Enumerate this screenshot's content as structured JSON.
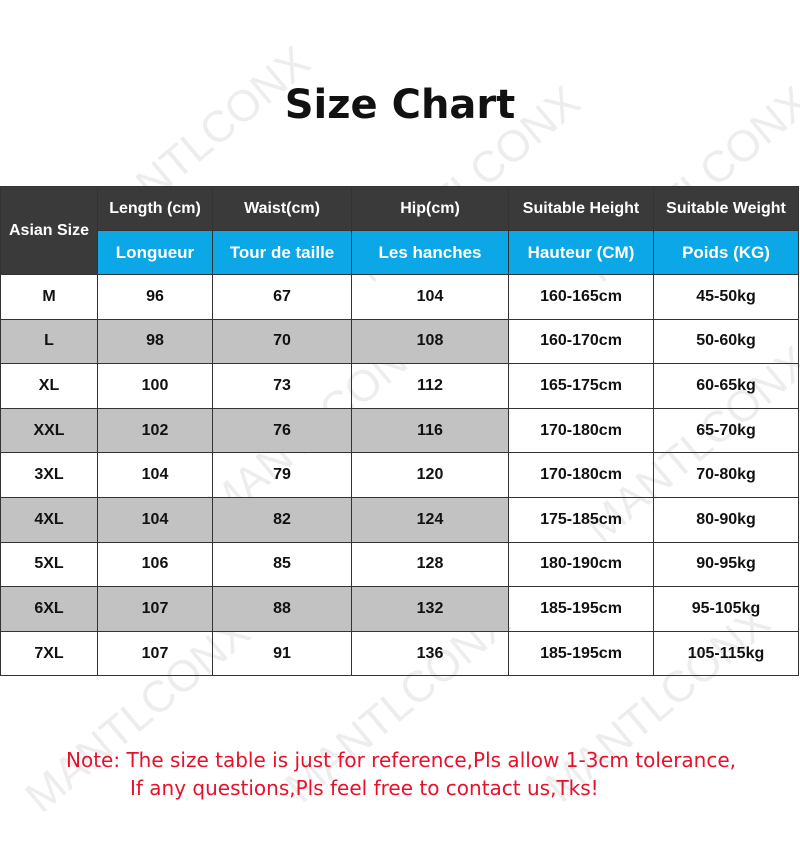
{
  "title": "Size Chart",
  "watermark": "MANTLCONX",
  "colors": {
    "header_dark": "#3a3a3a",
    "header_blue": "#0ba7e6",
    "row_gray": "#c2c2c2",
    "note_red": "#e8102a"
  },
  "table": {
    "corner_header": "Asian Size",
    "headers_en": [
      "Length (cm)",
      "Waist(cm)",
      "Hip(cm)",
      "Suitable Height",
      "Suitable Weight"
    ],
    "headers_fr": [
      "Longueur",
      "Tour de taille",
      "Les hanches",
      "Hauteur (CM)",
      "Poids (KG)"
    ],
    "rows": [
      [
        "M",
        "96",
        "67",
        "104",
        "160-165cm",
        "45-50kg"
      ],
      [
        "L",
        "98",
        "70",
        "108",
        "160-170cm",
        "50-60kg"
      ],
      [
        "XL",
        "100",
        "73",
        "112",
        "165-175cm",
        "60-65kg"
      ],
      [
        "XXL",
        "102",
        "76",
        "116",
        "170-180cm",
        "65-70kg"
      ],
      [
        "3XL",
        "104",
        "79",
        "120",
        "170-180cm",
        "70-80kg"
      ],
      [
        "4XL",
        "104",
        "82",
        "124",
        "175-185cm",
        "80-90kg"
      ],
      [
        "5XL",
        "106",
        "85",
        "128",
        "180-190cm",
        "90-95kg"
      ],
      [
        "6XL",
        "107",
        "88",
        "132",
        "185-195cm",
        "95-105kg"
      ],
      [
        "7XL",
        "107",
        "91",
        "136",
        "185-195cm",
        "105-115kg"
      ]
    ]
  },
  "note": {
    "line1": "Note: The size table is just for reference,Pls allow 1-3cm tolerance,",
    "line2": "If any questions,Pls feel free to contact us,Tks!"
  }
}
